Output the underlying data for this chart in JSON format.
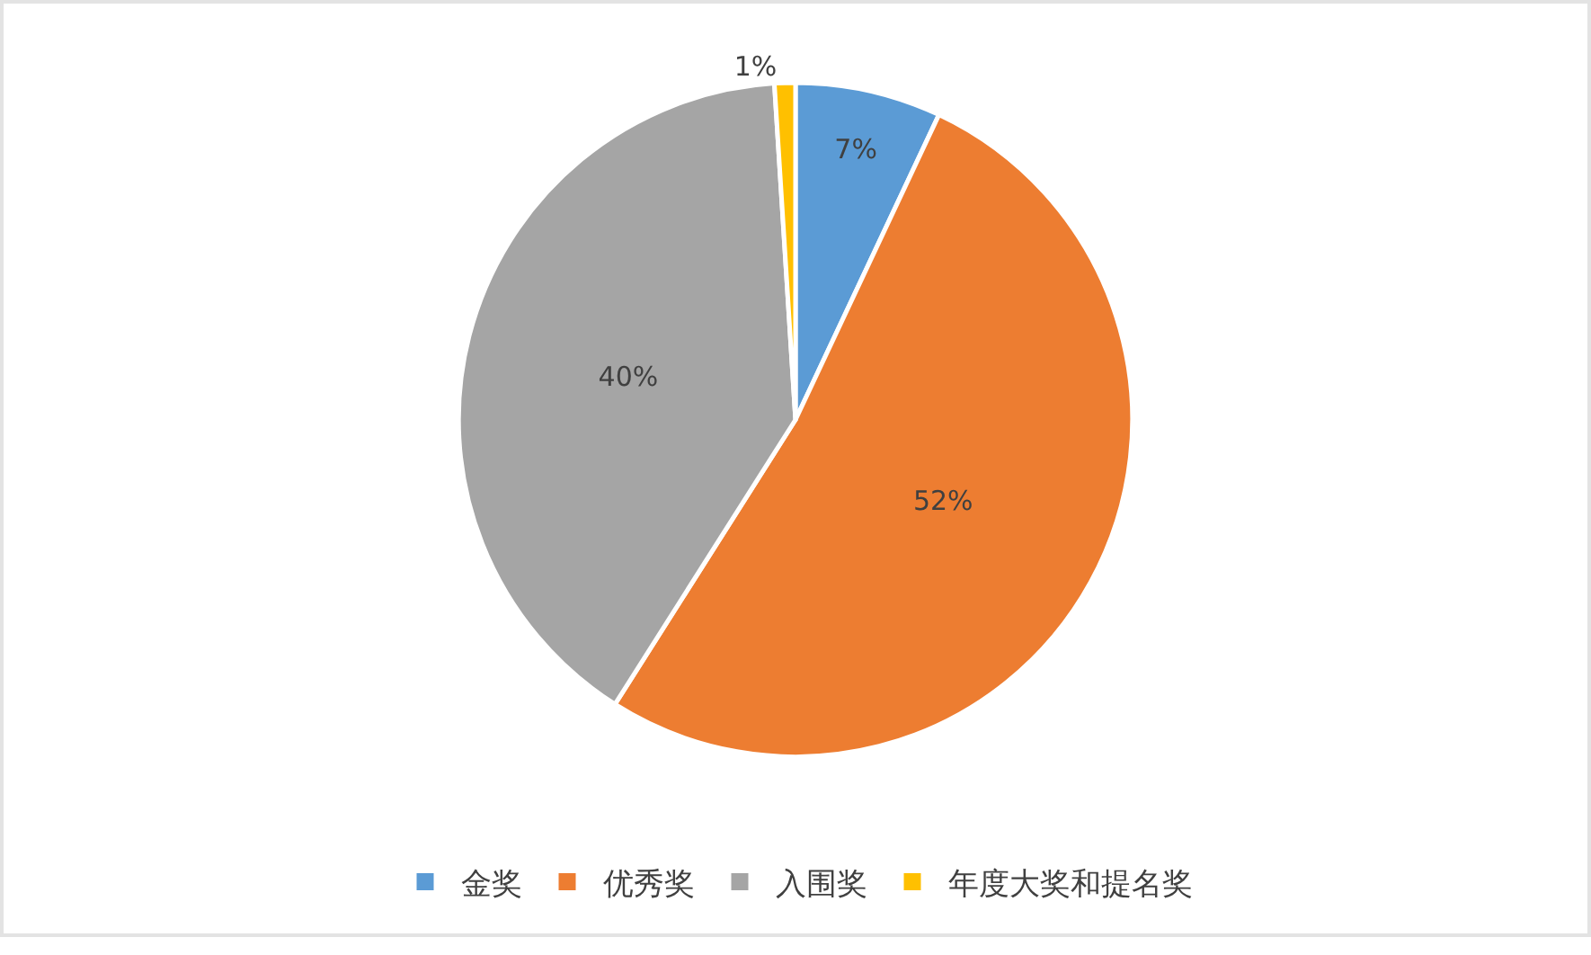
{
  "chart_data": {
    "type": "pie",
    "categories": [
      "金奖",
      "优秀奖",
      "入围奖",
      "年度大奖和提名奖"
    ],
    "values": [
      7,
      52,
      40,
      1
    ],
    "colors": [
      "#5b9bd5",
      "#ed7d31",
      "#a5a5a5",
      "#ffc000"
    ],
    "value_labels": [
      "7%",
      "52%",
      "40%",
      "1%"
    ],
    "legend": "bottom"
  }
}
